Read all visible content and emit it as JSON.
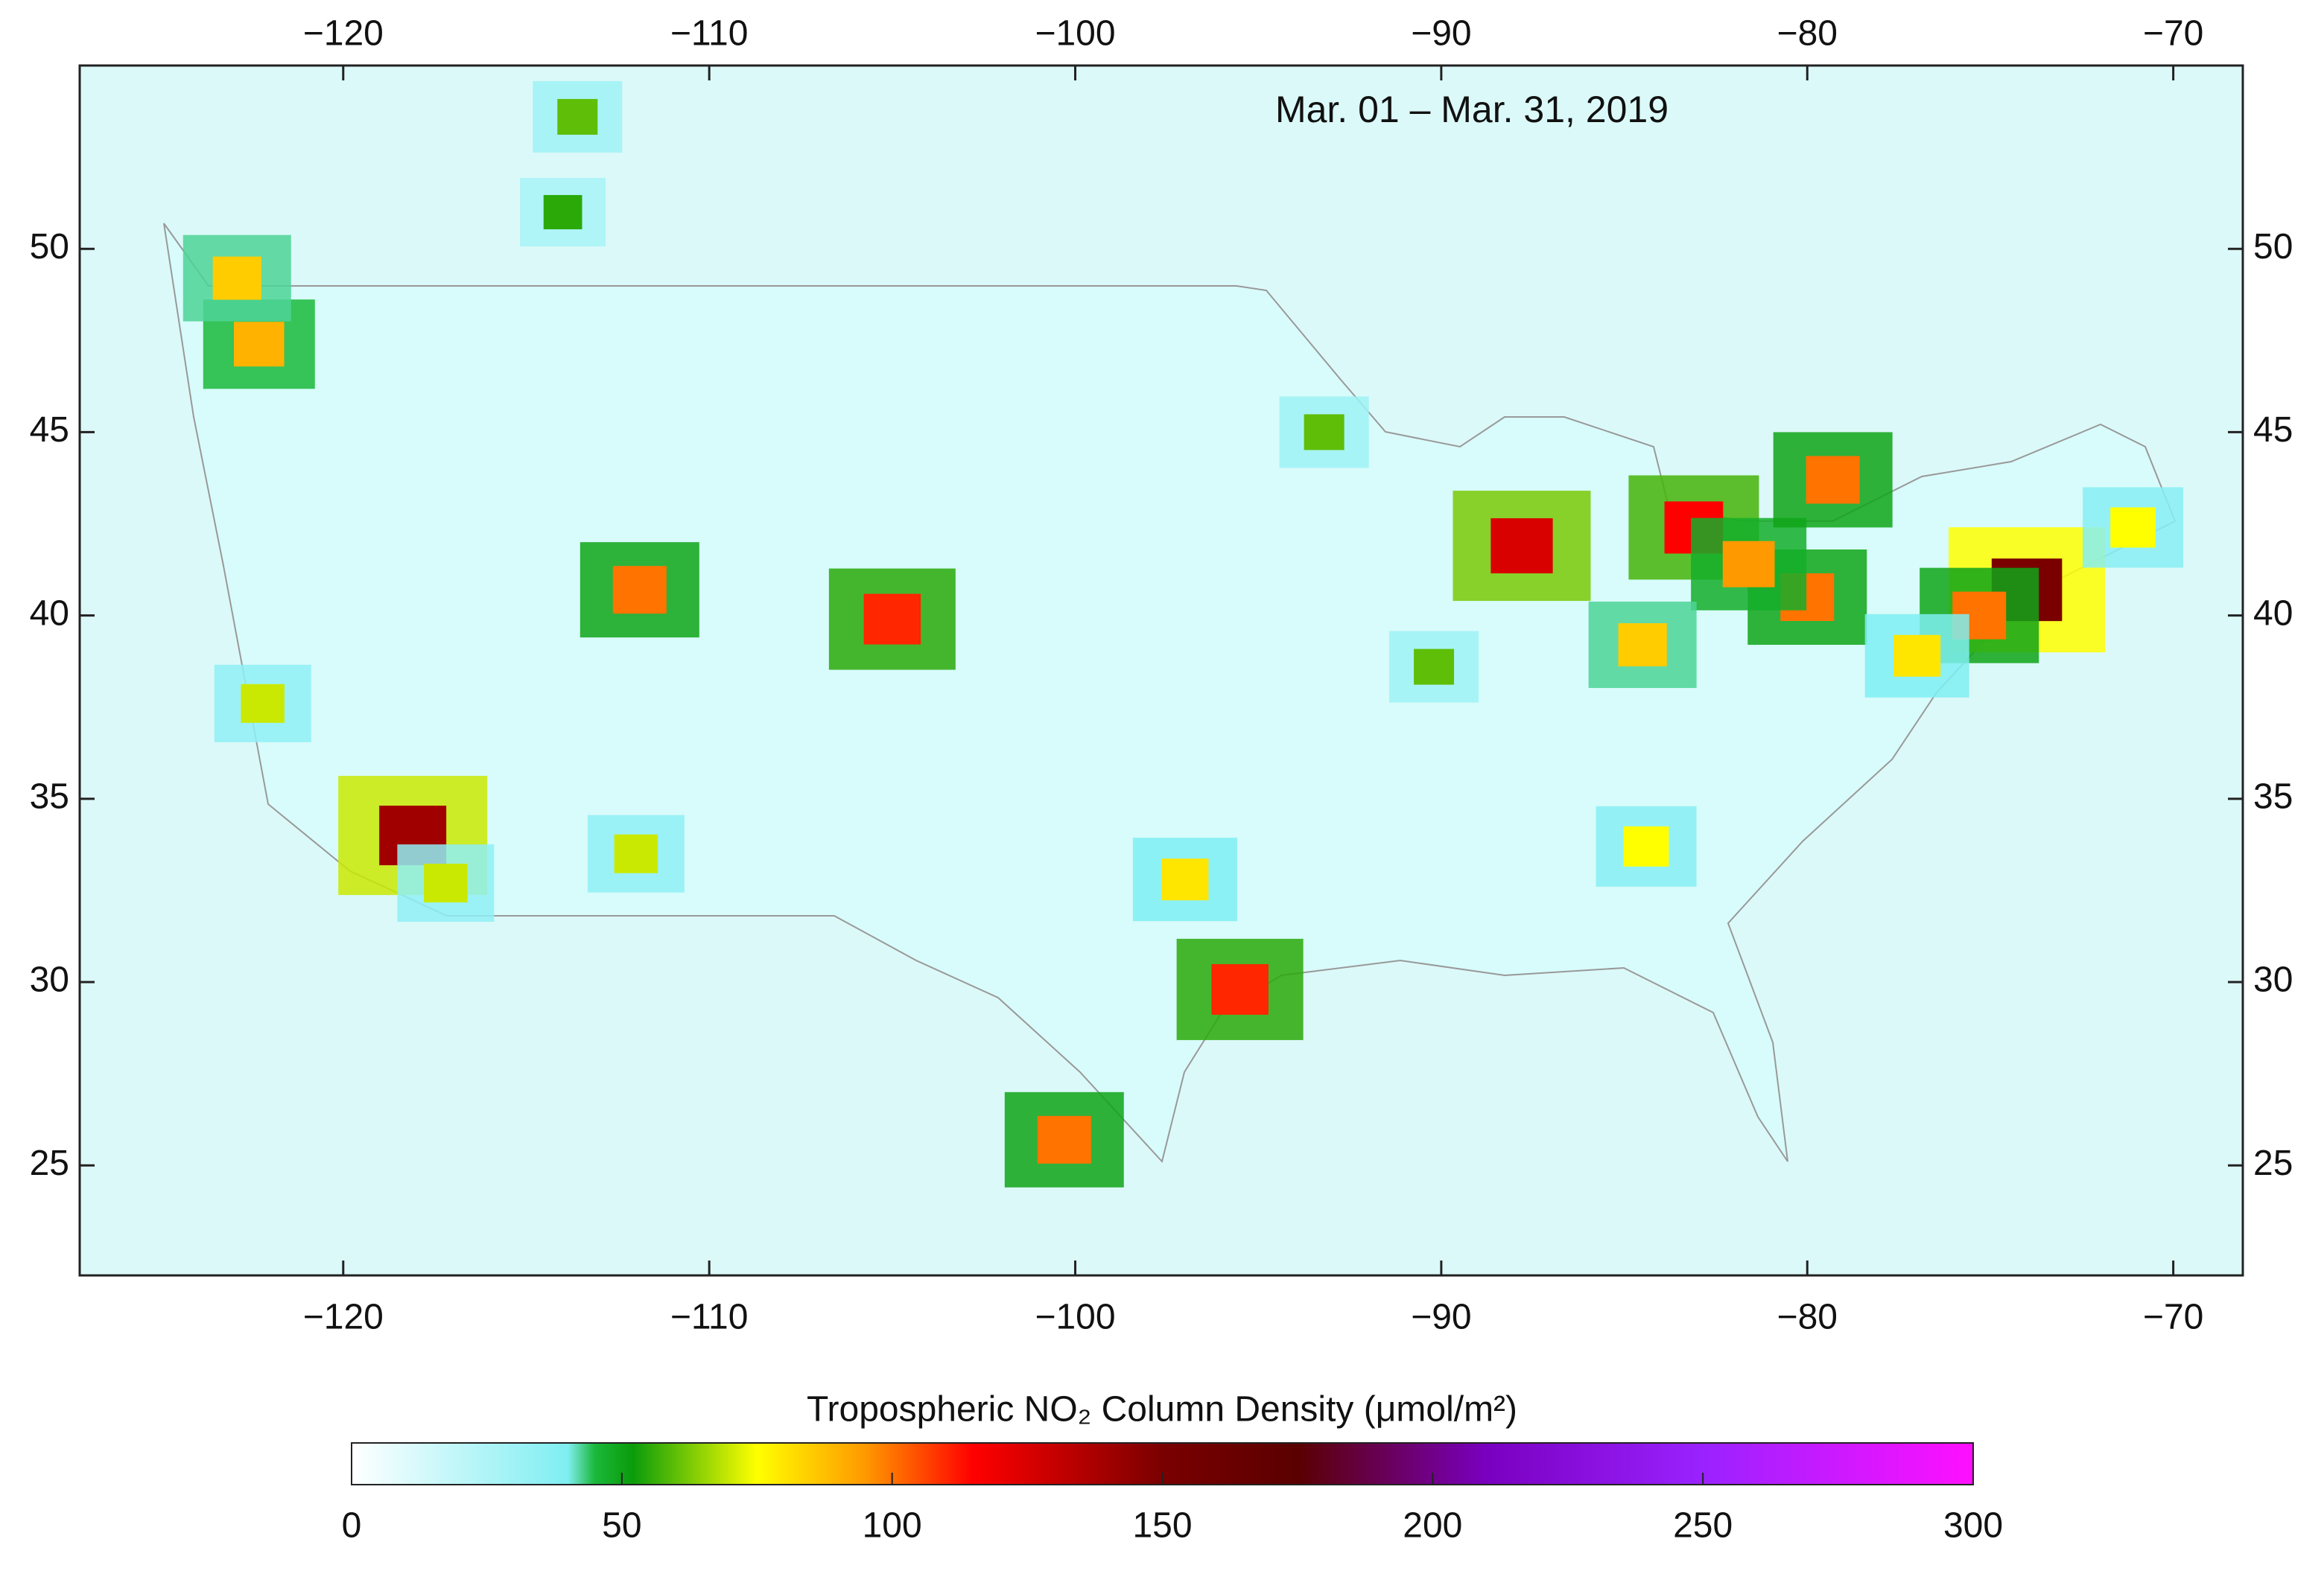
{
  "map": {
    "type": "heatmap",
    "date_label": "Mar. 01 – Mar. 31, 2019",
    "xlim": [
      -127.2,
      -68.1
    ],
    "ylim": [
      22,
      55
    ],
    "xticks": [
      {
        "value": -120,
        "label": "−120"
      },
      {
        "value": -110,
        "label": "−110"
      },
      {
        "value": -100,
        "label": "−100"
      },
      {
        "value": -90,
        "label": "−90"
      },
      {
        "value": -80,
        "label": "−80"
      },
      {
        "value": -70,
        "label": "−70"
      }
    ],
    "yticks": [
      25,
      30,
      35,
      40,
      45,
      50
    ],
    "colorbar": {
      "title": "Tropospheric NO₂ Column Density (μmol/m²)",
      "lim": [
        0,
        300
      ],
      "ticks": [
        0,
        50,
        100,
        150,
        200,
        250,
        300
      ],
      "colormap": [
        {
          "value": 0,
          "color": "#ffffff"
        },
        {
          "value": 40,
          "color": "#7feef2"
        },
        {
          "value": 45,
          "color": "#1ab83a"
        },
        {
          "value": 52,
          "color": "#0a9c0a"
        },
        {
          "value": 75,
          "color": "#ffff00"
        },
        {
          "value": 95,
          "color": "#ff9900"
        },
        {
          "value": 115,
          "color": "#ff0000"
        },
        {
          "value": 150,
          "color": "#7a0000"
        },
        {
          "value": 175,
          "color": "#5a0000"
        },
        {
          "value": 210,
          "color": "#7a00c0"
        },
        {
          "value": 250,
          "color": "#9a22ff"
        },
        {
          "value": 300,
          "color": "#ff10ff"
        }
      ]
    },
    "hotspots": [
      {
        "lon": -122.3,
        "lat": 47.4,
        "value": 90
      },
      {
        "lon": -122.9,
        "lat": 49.2,
        "value": 85
      },
      {
        "lon": -118.1,
        "lat": 34.0,
        "value": 140
      },
      {
        "lon": -105.0,
        "lat": 39.9,
        "value": 110
      },
      {
        "lon": -111.9,
        "lat": 40.7,
        "value": 100
      },
      {
        "lon": -87.8,
        "lat": 41.9,
        "value": 125
      },
      {
        "lon": -83.1,
        "lat": 42.4,
        "value": 115
      },
      {
        "lon": -80.0,
        "lat": 40.5,
        "value": 100
      },
      {
        "lon": -81.6,
        "lat": 41.4,
        "value": 95
      },
      {
        "lon": -74.0,
        "lat": 40.7,
        "value": 150
      },
      {
        "lon": -75.3,
        "lat": 40.0,
        "value": 100
      },
      {
        "lon": -95.5,
        "lat": 29.8,
        "value": 110
      },
      {
        "lon": -97.0,
        "lat": 32.8,
        "value": 80
      },
      {
        "lon": -84.4,
        "lat": 33.7,
        "value": 75
      },
      {
        "lon": -112.0,
        "lat": 33.5,
        "value": 70
      },
      {
        "lon": -79.3,
        "lat": 43.7,
        "value": 100
      },
      {
        "lon": -100.3,
        "lat": 25.7,
        "value": 100
      },
      {
        "lon": -84.5,
        "lat": 39.2,
        "value": 85
      },
      {
        "lon": -113.6,
        "lat": 53.6,
        "value": 60
      },
      {
        "lon": -114.0,
        "lat": 51.0,
        "value": 55
      },
      {
        "lon": -90.2,
        "lat": 38.6,
        "value": 60
      },
      {
        "lon": -93.2,
        "lat": 45.0,
        "value": 60
      },
      {
        "lon": -71.1,
        "lat": 42.4,
        "value": 75
      },
      {
        "lon": -77.0,
        "lat": 38.9,
        "value": 80
      },
      {
        "lon": -122.2,
        "lat": 37.6,
        "value": 70
      },
      {
        "lon": -117.2,
        "lat": 32.7,
        "value": 70
      }
    ]
  }
}
